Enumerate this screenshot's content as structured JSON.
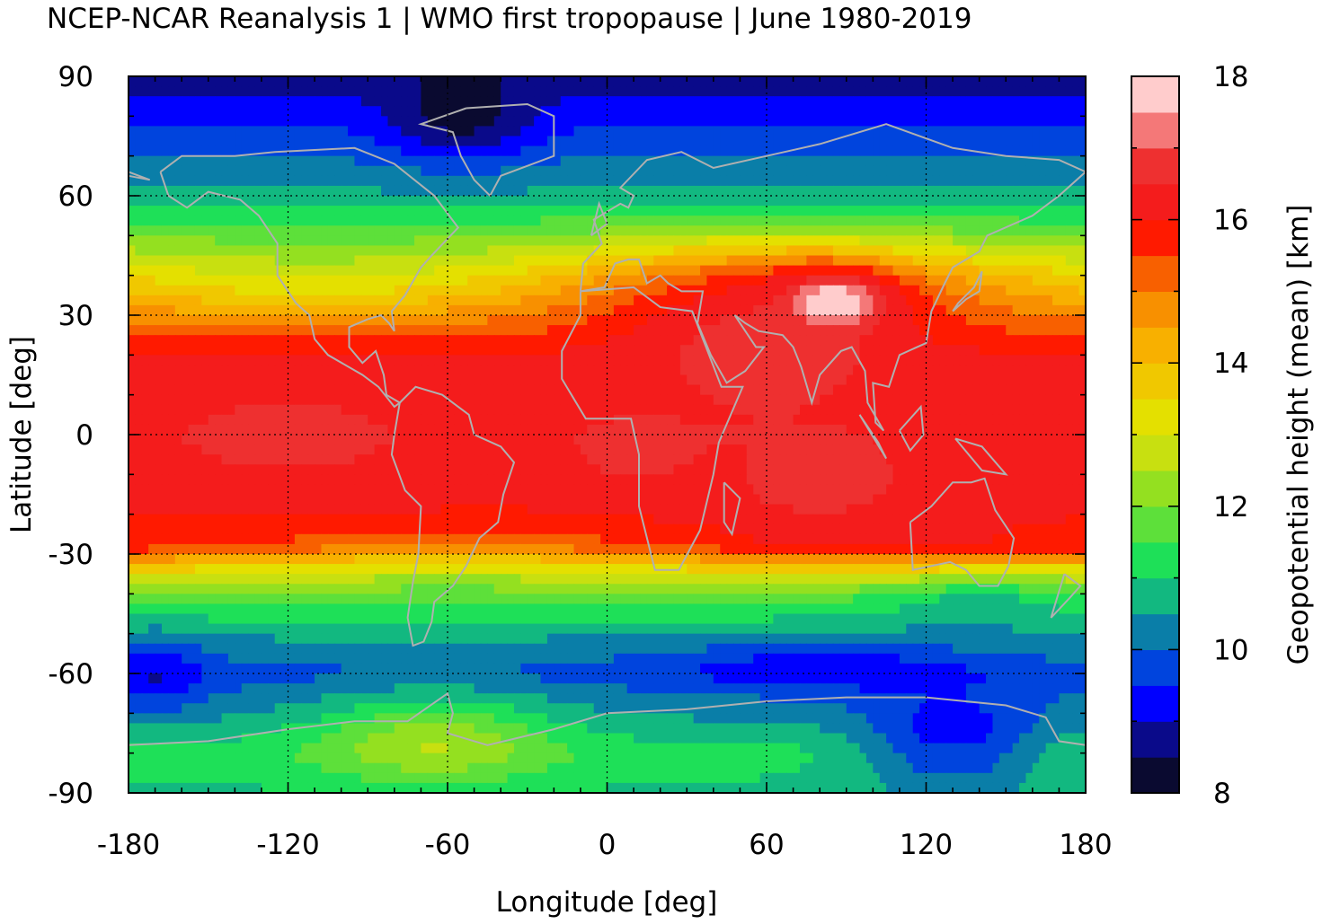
{
  "chart_data": {
    "type": "heatmap",
    "title": "NCEP-NCAR Reanalysis 1 | WMO first tropopause | June 1980-2019",
    "xlabel": "Longitude [deg]",
    "ylabel": "Latitude [deg]",
    "xlim": [
      -180,
      180
    ],
    "ylim": [
      -90,
      90
    ],
    "x_ticks": [
      "-180",
      "-120",
      "-60",
      "0",
      "60",
      "120",
      "180"
    ],
    "y_ticks": [
      "-90",
      "-60",
      "-30",
      "0",
      "30",
      "60",
      "90"
    ],
    "grid": true,
    "colorbar": {
      "label": "Geopotential height (mean) [km]",
      "range": [
        8,
        18
      ],
      "step": 0.5,
      "ticks": [
        "8",
        "10",
        "12",
        "14",
        "16",
        "18"
      ],
      "colors": [
        "#0a0a30",
        "#0a0a8a",
        "#0000ff",
        "#0044dd",
        "#0a7ea8",
        "#12b880",
        "#1ee058",
        "#5de03a",
        "#94e020",
        "#c8e010",
        "#e4e000",
        "#f0c800",
        "#f8b000",
        "#f89000",
        "#f86000",
        "#ff1a00",
        "#f41c1c",
        "#ee3030",
        "#f47878",
        "#ffcccc"
      ]
    },
    "latitude_profile_km": [
      {
        "lat": 90,
        "km": 8.7
      },
      {
        "lat": 80,
        "km": 9.4
      },
      {
        "lat": 70,
        "km": 10.0
      },
      {
        "lat": 60,
        "km": 10.6
      },
      {
        "lat": 50,
        "km": 12.0
      },
      {
        "lat": 40,
        "km": 13.8
      },
      {
        "lat": 30,
        "km": 15.0
      },
      {
        "lat": 20,
        "km": 16.0
      },
      {
        "lat": 10,
        "km": 16.1
      },
      {
        "lat": 0,
        "km": 16.4
      },
      {
        "lat": -10,
        "km": 16.2
      },
      {
        "lat": -20,
        "km": 16.0
      },
      {
        "lat": -28,
        "km": 15.6
      },
      {
        "lat": -35,
        "km": 13.0
      },
      {
        "lat": -40,
        "km": 11.8
      },
      {
        "lat": -50,
        "km": 10.6
      },
      {
        "lat": -60,
        "km": 9.8
      },
      {
        "lat": -70,
        "km": 10.4
      },
      {
        "lat": -80,
        "km": 11.2
      },
      {
        "lat": -90,
        "km": 10.9
      }
    ],
    "anomalies": [
      {
        "lon": 85,
        "lat": 33,
        "dlon": 22,
        "dlat": 8,
        "km": 17.6
      },
      {
        "lon": 60,
        "lat": 20,
        "dlon": 55,
        "dlat": 20,
        "km": 16.6
      },
      {
        "lon": -120,
        "lat": 0,
        "dlon": 45,
        "dlat": 12,
        "km": 16.6
      },
      {
        "lon": 10,
        "lat": -4,
        "dlon": 25,
        "dlat": 10,
        "km": 16.6
      },
      {
        "lon": 80,
        "lat": -12,
        "dlon": 40,
        "dlat": 12,
        "km": 16.6
      },
      {
        "lon": -55,
        "lat": 78,
        "dlon": 28,
        "dlat": 10,
        "km": -1.2
      },
      {
        "lon": 80,
        "lat": -58,
        "dlon": 55,
        "dlat": 7,
        "km": -0.8
      },
      {
        "lon": -170,
        "lat": -60,
        "dlon": 20,
        "dlat": 10,
        "km": -0.9
      },
      {
        "lon": -65,
        "lat": -76,
        "dlon": 45,
        "dlat": 12,
        "km": 1.5
      },
      {
        "lon": 130,
        "lat": -78,
        "dlon": 35,
        "dlat": 12,
        "km": -1.6
      },
      {
        "lon": 140,
        "lat": -40,
        "dlon": 40,
        "dlat": 8,
        "km": -0.8
      }
    ]
  }
}
